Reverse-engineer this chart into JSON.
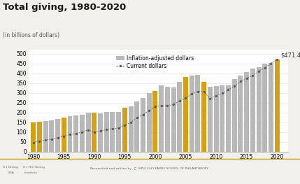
{
  "years": [
    1980,
    1981,
    1982,
    1983,
    1984,
    1985,
    1986,
    1987,
    1988,
    1989,
    1990,
    1991,
    1992,
    1993,
    1994,
    1995,
    1996,
    1997,
    1998,
    1999,
    2000,
    2001,
    2002,
    2003,
    2004,
    2005,
    2006,
    2007,
    2008,
    2009,
    2010,
    2011,
    2012,
    2013,
    2014,
    2015,
    2016,
    2017,
    2018,
    2019,
    2020
  ],
  "inflation_adjusted": [
    148,
    152,
    155,
    161,
    166,
    173,
    182,
    185,
    190,
    200,
    200,
    196,
    202,
    204,
    203,
    225,
    232,
    255,
    275,
    300,
    310,
    337,
    330,
    328,
    356,
    382,
    387,
    393,
    355,
    330,
    335,
    340,
    338,
    372,
    390,
    406,
    424,
    430,
    449,
    451,
    471
  ],
  "current_dollars": [
    48,
    55,
    60,
    64,
    72,
    80,
    88,
    92,
    101,
    112,
    101,
    106,
    113,
    118,
    121,
    136,
    150,
    173,
    190,
    210,
    230,
    234,
    235,
    241,
    260,
    274,
    296,
    308,
    307,
    269,
    286,
    298,
    316,
    335,
    358,
    373,
    390,
    410,
    428,
    450,
    471
  ],
  "gold_years": [
    1980,
    1981,
    1985,
    1990,
    1995,
    2000,
    2005,
    2008,
    2020
  ],
  "bar_color_gray": "#b8b8b8",
  "bar_color_gold": "#d4a017",
  "line_color": "#555555",
  "title": "Total giving, 1980-2020",
  "subtitle": "(in billions of dollars)",
  "legend_bar_label": "Inflation-adjusted dollars",
  "legend_line_label": "Current dollars",
  "annotation": "$471.44",
  "ylim": [
    0,
    520
  ],
  "yticks": [
    0,
    50,
    100,
    150,
    200,
    250,
    300,
    350,
    400,
    450,
    500
  ],
  "xticks": [
    1980,
    1985,
    1990,
    1995,
    2000,
    2005,
    2010,
    2015,
    2020
  ],
  "background_color": "#f2f0eb",
  "plot_bg_color": "#ffffff",
  "title_fontsize": 9.5,
  "subtitle_fontsize": 5.5,
  "tick_fontsize": 5.5,
  "annotation_fontsize": 6,
  "legend_fontsize": 5.5
}
